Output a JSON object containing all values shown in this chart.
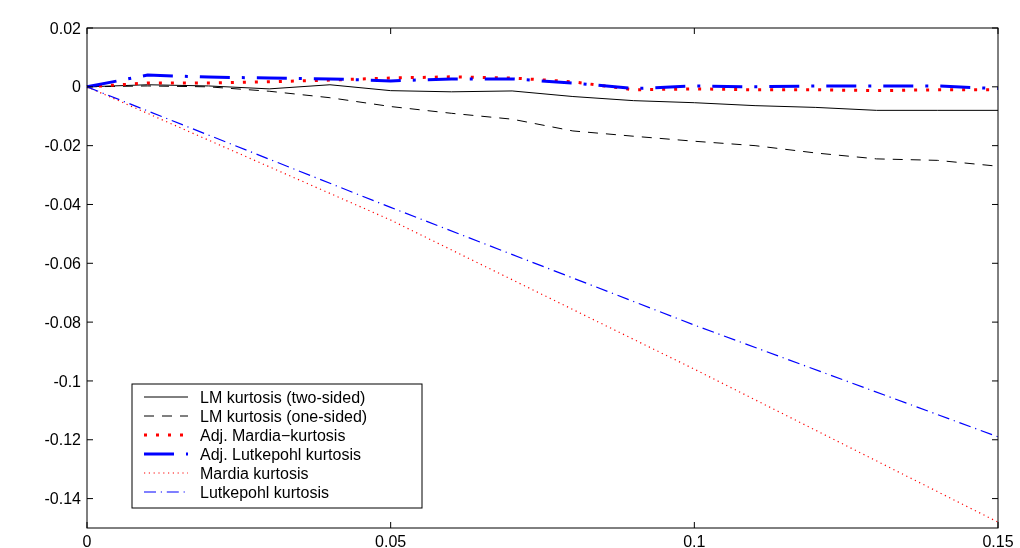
{
  "chart_data": {
    "type": "line",
    "x": [
      0,
      0.01,
      0.02,
      0.03,
      0.04,
      0.05,
      0.06,
      0.07,
      0.08,
      0.09,
      0.1,
      0.11,
      0.12,
      0.13,
      0.14,
      0.15
    ],
    "series": [
      {
        "name": "LM kurtosis (two-sided)",
        "color": "#000000",
        "line_style": "solid",
        "values": [
          0,
          0.0007,
          0.0003,
          -0.0007,
          0.0007,
          -0.0013,
          -0.0017,
          -0.0014,
          -0.0033,
          -0.0047,
          -0.0054,
          -0.0064,
          -0.007,
          -0.008,
          -0.008,
          -0.008
        ]
      },
      {
        "name": "LM kurtosis (one-sided)",
        "color": "#000000",
        "line_style": "dashed",
        "values": [
          0,
          0.0003,
          0,
          -0.0015,
          -0.0037,
          -0.0067,
          -0.009,
          -0.011,
          -0.015,
          -0.0168,
          -0.0185,
          -0.02,
          -0.0225,
          -0.0245,
          -0.025,
          -0.027
        ]
      },
      {
        "name": "Adj. Mardia−kurtosis",
        "color": "#ff0000",
        "line_style": "dotted",
        "values": [
          0,
          0.0013,
          0.0013,
          0.0017,
          0.0023,
          0.003,
          0.0034,
          0.003,
          0.0017,
          -0.001,
          -0.0007,
          -0.001,
          -0.001,
          -0.0013,
          -0.001,
          -0.001
        ]
      },
      {
        "name": "Adj. Lutkepohl kurtosis",
        "color": "#0000ff",
        "line_style": "dashdot",
        "values": [
          0,
          0.004,
          0.0033,
          0.003,
          0.0027,
          0.002,
          0.0027,
          0.0027,
          0.0013,
          -0.0006,
          0.0003,
          0,
          0.0003,
          0.0003,
          0.0003,
          -0.0006
        ]
      },
      {
        "name": "Mardia kurtosis",
        "color": "#ff0000",
        "line_style": "dotted",
        "x": [
          0,
          0.05,
          0.1,
          0.15
        ],
        "values": [
          0,
          -0.0453,
          -0.096,
          -0.148
        ]
      },
      {
        "name": "Lutkepohl kurtosis",
        "color": "#0000ff",
        "line_style": "dashdot",
        "x": [
          0,
          0.05,
          0.1,
          0.15
        ],
        "values": [
          0,
          -0.041,
          -0.081,
          -0.119
        ]
      }
    ],
    "xlim": [
      0,
      0.15
    ],
    "xticks": [
      0,
      0.05,
      0.1,
      0.15
    ],
    "ylim": [
      -0.15,
      0.02
    ],
    "yticks": [
      -0.14,
      -0.12,
      -0.1,
      -0.08,
      -0.06,
      -0.04,
      -0.02,
      0,
      0.02
    ],
    "legend": "bottom left"
  }
}
